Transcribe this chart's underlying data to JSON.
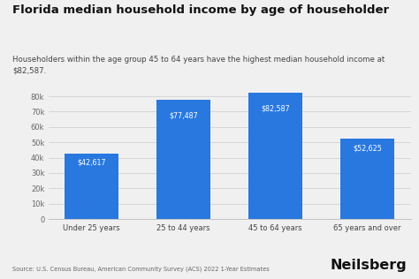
{
  "title": "Florida median household income by age of householder",
  "subtitle": "Householders within the age group 45 to 64 years have the highest median household income at\n$82,587.",
  "categories": [
    "Under 25 years",
    "25 to 44 years",
    "45 to 64 years",
    "65 years and over"
  ],
  "values": [
    42617,
    77487,
    82587,
    52625
  ],
  "labels": [
    "$42,617",
    "$77,487",
    "$82,587",
    "$52,625"
  ],
  "bar_color": "#2878e0",
  "background_color": "#f0f0f0",
  "ylim": [
    0,
    90000
  ],
  "yticks": [
    0,
    10000,
    20000,
    30000,
    40000,
    50000,
    60000,
    70000,
    80000
  ],
  "source_text": "Source: U.S. Census Bureau, American Community Survey (ACS) 2022 1-Year Estimates",
  "brand_text": "Neilsberg",
  "title_fontsize": 9.5,
  "subtitle_fontsize": 6.2,
  "bar_label_fontsize": 5.8,
  "tick_fontsize": 6.0,
  "source_fontsize": 4.8,
  "brand_fontsize": 11.5
}
